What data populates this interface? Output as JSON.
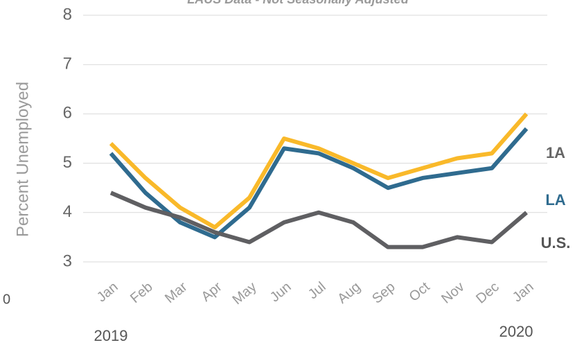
{
  "chart_data": {
    "type": "line",
    "title": "LAUS Data - Not Seasonally Adjusted",
    "y_label": "Percent Unemployed",
    "annotation": "0",
    "years": [
      "2019",
      "2020"
    ],
    "categories": [
      "Jan",
      "Feb",
      "Mar",
      "Apr",
      "May",
      "Jun",
      "Jul",
      "Aug",
      "Sep",
      "Oct",
      "Nov",
      "Dec",
      "Jan"
    ],
    "series": [
      {
        "name": "1A",
        "color": "#f9b92a",
        "label_color": "#666666",
        "values": [
          5.4,
          4.7,
          4.1,
          3.7,
          4.3,
          5.5,
          5.3,
          5.0,
          4.7,
          4.9,
          5.1,
          5.2,
          6.0
        ]
      },
      {
        "name": "LA",
        "color": "#2f6b8f",
        "label_color": "#2f6b8f",
        "values": [
          5.2,
          4.4,
          3.8,
          3.5,
          4.1,
          5.3,
          5.2,
          4.9,
          4.5,
          4.7,
          4.8,
          4.9,
          5.7
        ]
      },
      {
        "name": "U.S.",
        "color": "#5f5f62",
        "label_color": "#555555",
        "values": [
          4.4,
          4.1,
          3.9,
          3.6,
          3.4,
          3.8,
          4.0,
          3.8,
          3.3,
          3.3,
          3.5,
          3.4,
          4.0
        ]
      }
    ],
    "ylim": [
      3,
      8
    ],
    "yticks": [
      3,
      4,
      5,
      6,
      7,
      8
    ],
    "grid": true
  }
}
